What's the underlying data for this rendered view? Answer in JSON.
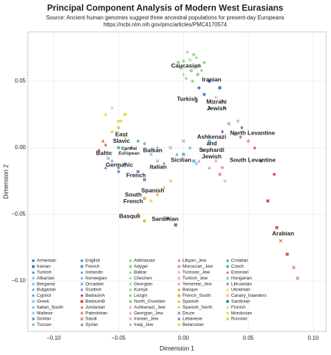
{
  "chart_data": {
    "type": "scatter",
    "title": "Principal Component Analysis of Modern West Eurasians",
    "subtitle": "Source: Ancient human genomes suggest three ancestral populations for present-day Europeans",
    "source_url": "https://ncbi.nlm.nih.gov/pmc/articles/PMC4170574",
    "xlabel": "Dimension 1",
    "ylabel": "Dimension 2",
    "xlim": [
      -0.12,
      0.11
    ],
    "ylim": [
      -0.138,
      0.087
    ],
    "xticks": [
      {
        "value": -0.1,
        "label": "−0.10"
      },
      {
        "value": -0.05,
        "label": "−0.05"
      },
      {
        "value": 0,
        "label": "0.00"
      },
      {
        "value": 0.05,
        "label": "0.05"
      },
      {
        "value": 0.1,
        "label": "0.10"
      }
    ],
    "yticks": [
      {
        "value": -0.1,
        "label": "−0.10"
      },
      {
        "value": -0.05,
        "label": "−0.05"
      },
      {
        "value": 0,
        "label": "0.00"
      },
      {
        "value": 0.05,
        "label": "0.05"
      }
    ],
    "grid": true,
    "annotations": [
      [
        "Caucasian"
      ],
      [
        "Iranian"
      ],
      [
        "Turkish"
      ],
      [
        "Mizrahi",
        "Jewish"
      ],
      [
        "North Levantine"
      ],
      [
        "East",
        "Slavic"
      ],
      [
        "Baltic"
      ],
      [
        "Central",
        "European"
      ],
      [
        "Balkan"
      ],
      [
        "Germanic"
      ],
      [
        "Italian"
      ],
      [
        "French"
      ],
      [
        "Sicilian"
      ],
      [
        "Ashkenazi",
        "and",
        "Sephardi",
        "Jewish"
      ],
      [
        "South Levantine"
      ],
      [
        "Spanish"
      ],
      [
        "South",
        "French"
      ],
      [
        "Basque"
      ],
      [
        "Sardinian"
      ],
      [
        "Arabian"
      ]
    ],
    "series": [
      {
        "name": "Armenian",
        "color": "#3f6ec4",
        "marker": "circle",
        "x": [
          0.012,
          0.016
        ],
        "y": [
          0.045,
          0.04
        ]
      },
      {
        "name": "Iranian",
        "color": "#3f6ec4",
        "marker": "square",
        "x": [
          0.02,
          0.028
        ],
        "y": [
          0.05,
          0.045
        ]
      },
      {
        "name": "Turkish",
        "color": "#3f6ec4",
        "marker": "triangle",
        "x": [
          0.01,
          0.02
        ],
        "y": [
          0.035,
          0.03
        ]
      },
      {
        "name": "Albanian",
        "color": "#5aaecf",
        "marker": "plus",
        "x": [
          -0.02
        ],
        "y": [
          0.0
        ]
      },
      {
        "name": "Bergamo",
        "color": "#5aaecf",
        "marker": "cross",
        "x": [
          -0.025,
          -0.02
        ],
        "y": [
          -0.005,
          -0.01
        ]
      },
      {
        "name": "Bulgarian",
        "color": "#5aaecf",
        "marker": "diamond",
        "x": [
          -0.03
        ],
        "y": [
          0.003
        ]
      },
      {
        "name": "Cypriot",
        "color": "#5aaecf",
        "marker": "circle",
        "x": [
          0.02,
          0.015
        ],
        "y": [
          0.005,
          -0.002
        ]
      },
      {
        "name": "Greek",
        "color": "#5aaecf",
        "marker": "cross",
        "x": [
          -0.01,
          0.0
        ],
        "y": [
          0.0,
          0.005
        ]
      },
      {
        "name": "Italian_South",
        "color": "#5aaecf",
        "marker": "triangle",
        "x": [
          -0.005,
          0.005
        ],
        "y": [
          -0.005,
          0.0
        ]
      },
      {
        "name": "Maltese",
        "color": "#5aaecf",
        "marker": "plus",
        "x": [
          0.01
        ],
        "y": [
          -0.012
        ]
      },
      {
        "name": "Sicilian",
        "color": "#5aaecf",
        "marker": "square",
        "x": [
          0.0,
          0.008
        ],
        "y": [
          -0.005,
          -0.01
        ]
      },
      {
        "name": "Tuscan",
        "color": "#5aaecf",
        "marker": "diamond",
        "x": [
          -0.015
        ],
        "y": [
          -0.012
        ]
      },
      {
        "name": "English",
        "color": "#5b8fd6",
        "marker": "circle",
        "x": [
          -0.045,
          -0.05
        ],
        "y": [
          -0.012,
          -0.018
        ]
      },
      {
        "name": "French",
        "color": "#5b8fd6",
        "marker": "square",
        "x": [
          -0.035,
          -0.03
        ],
        "y": [
          -0.018,
          -0.024
        ]
      },
      {
        "name": "Icelandic",
        "color": "#5b8fd6",
        "marker": "triangle",
        "x": [
          -0.06
        ],
        "y": [
          -0.015
        ]
      },
      {
        "name": "Norwegian",
        "color": "#5b8fd6",
        "marker": "plus",
        "x": [
          -0.055
        ],
        "y": [
          -0.01
        ]
      },
      {
        "name": "Orcadian",
        "color": "#5b8fd6",
        "marker": "cross",
        "x": [
          -0.058
        ],
        "y": [
          -0.008
        ]
      },
      {
        "name": "Scottish",
        "color": "#5b8fd6",
        "marker": "diamond",
        "x": [
          -0.05
        ],
        "y": [
          -0.015
        ]
      },
      {
        "name": "BedouinA",
        "color": "#d64a3b",
        "marker": "circle",
        "x": [
          0.06,
          0.07
        ],
        "y": [
          -0.01,
          -0.02
        ]
      },
      {
        "name": "BedouinB",
        "color": "#d64a3b",
        "marker": "square",
        "x": [
          0.065,
          0.072,
          0.08
        ],
        "y": [
          -0.04,
          -0.06,
          -0.08
        ]
      },
      {
        "name": "Jordanian",
        "color": "#d64a3b",
        "marker": "triangle",
        "x": [
          0.055
        ],
        "y": [
          0.0
        ]
      },
      {
        "name": "Palestinian",
        "color": "#d64a3b",
        "marker": "plus",
        "x": [
          0.05
        ],
        "y": [
          0.005
        ]
      },
      {
        "name": "Saudi",
        "color": "#d64a3b",
        "marker": "cross",
        "x": [
          0.075,
          0.085,
          0.088
        ],
        "y": [
          -0.07,
          -0.09,
          -0.098
        ]
      },
      {
        "name": "Syrian",
        "color": "#9a6ab8",
        "marker": "diamond",
        "x": [
          0.044
        ],
        "y": [
          0.008
        ]
      },
      {
        "name": "Abkhasian",
        "color": "#8fd18a",
        "marker": "circle",
        "x": [
          0.0,
          0.008
        ],
        "y": [
          0.065,
          0.07
        ]
      },
      {
        "name": "Adygei",
        "color": "#8fd18a",
        "marker": "square",
        "x": [
          -0.002,
          0.006
        ],
        "y": [
          0.06,
          0.058
        ]
      },
      {
        "name": "Balkar",
        "color": "#8fd18a",
        "marker": "triangle",
        "x": [
          0.01,
          0.003
        ],
        "y": [
          0.068,
          0.072
        ]
      },
      {
        "name": "Chechen",
        "color": "#8fd18a",
        "marker": "plus",
        "x": [
          0.012,
          0.0
        ],
        "y": [
          0.062,
          0.055
        ]
      },
      {
        "name": "Georgian",
        "color": "#8fd18a",
        "marker": "cross",
        "x": [
          0.005,
          0.009
        ],
        "y": [
          0.066,
          0.06
        ]
      },
      {
        "name": "Kumyk",
        "color": "#8fd18a",
        "marker": "diamond",
        "x": [
          0.014,
          0.002
        ],
        "y": [
          0.058,
          0.052
        ]
      },
      {
        "name": "Lezgin",
        "color": "#8fd18a",
        "marker": "circle",
        "x": [
          0.016,
          0.007
        ],
        "y": [
          0.064,
          0.05
        ]
      },
      {
        "name": "North_Ossetian",
        "color": "#8fd18a",
        "marker": "square",
        "x": [
          -0.004,
          0.011
        ],
        "y": [
          0.064,
          0.055
        ]
      },
      {
        "name": "Ashkenazi_Jew",
        "color": "#e58fa0",
        "marker": "triangle",
        "x": [
          0.012,
          0.02
        ],
        "y": [
          -0.01,
          -0.015
        ]
      },
      {
        "name": "Georgian_Jew",
        "color": "#e58fa0",
        "marker": "plus",
        "x": [
          0.025
        ],
        "y": [
          0.038
        ]
      },
      {
        "name": "Iranian_Jew",
        "color": "#e58fa0",
        "marker": "cross",
        "x": [
          0.03
        ],
        "y": [
          0.035
        ]
      },
      {
        "name": "Iraqi_Jew",
        "color": "#e58fa0",
        "marker": "diamond",
        "x": [
          0.032
        ],
        "y": [
          0.03
        ]
      },
      {
        "name": "Libyan_Jew",
        "color": "#e58fa0",
        "marker": "circle",
        "x": [
          0.03
        ],
        "y": [
          -0.015
        ]
      },
      {
        "name": "Moroccan_Jew",
        "color": "#e58fa0",
        "marker": "square",
        "x": [
          0.028
        ],
        "y": [
          -0.02
        ]
      },
      {
        "name": "Tunisian_Jew",
        "color": "#e58fa0",
        "marker": "plus",
        "x": [
          0.032
        ],
        "y": [
          -0.025
        ]
      },
      {
        "name": "Turkish_Jew",
        "color": "#e58fa0",
        "marker": "cross",
        "x": [
          0.025
        ],
        "y": [
          -0.01
        ]
      },
      {
        "name": "Yemenite_Jew",
        "color": "#e58fa0",
        "marker": "diamond",
        "x": [
          0.042
        ],
        "y": [
          0.02
        ]
      },
      {
        "name": "Basque",
        "color": "#f0a13a",
        "marker": "circle",
        "x": [
          -0.035,
          -0.03
        ],
        "y": [
          -0.05,
          -0.055
        ]
      },
      {
        "name": "French_South",
        "color": "#f0a13a",
        "marker": "square",
        "x": [
          -0.03
        ],
        "y": [
          -0.038
        ]
      },
      {
        "name": "Spanish",
        "color": "#f0a13a",
        "marker": "triangle",
        "x": [
          -0.02,
          -0.015
        ],
        "y": [
          -0.035,
          -0.03
        ]
      },
      {
        "name": "Spanish_North",
        "color": "#f0a13a",
        "marker": "plus",
        "x": [
          -0.025
        ],
        "y": [
          -0.04
        ]
      },
      {
        "name": "Druze",
        "color": "#7b68b5",
        "marker": "cross",
        "x": [
          0.035,
          0.04
        ],
        "y": [
          0.018,
          0.01
        ]
      },
      {
        "name": "Lebanese",
        "color": "#7b68b5",
        "marker": "diamond",
        "x": [
          0.03,
          0.045
        ],
        "y": [
          0.012,
          0.015
        ]
      },
      {
        "name": "Belarusian",
        "color": "#e0d43a",
        "marker": "circle",
        "x": [
          -0.055,
          -0.05
        ],
        "y": [
          0.012,
          0.02
        ]
      },
      {
        "name": "Croatian",
        "color": "#4fb6c0",
        "marker": "circle",
        "x": [
          -0.04,
          -0.035
        ],
        "y": [
          0.0,
          0.005
        ]
      },
      {
        "name": "Czech",
        "color": "#4fb6c0",
        "marker": "square",
        "x": [
          -0.05
        ],
        "y": [
          0.0
        ]
      },
      {
        "name": "Estonian",
        "color": "#e0614f",
        "marker": "triangle",
        "x": [
          -0.062
        ],
        "y": [
          0.005
        ]
      },
      {
        "name": "Hungarian",
        "color": "#4fb6c0",
        "marker": "cross",
        "x": [
          -0.045
        ],
        "y": [
          -0.002
        ]
      },
      {
        "name": "Lithuanian",
        "color": "#e0614f",
        "marker": "diamond",
        "x": [
          -0.065,
          -0.06
        ],
        "y": [
          -0.002,
          0.002
        ]
      },
      {
        "name": "Ukrainian",
        "color": "#e0d43a",
        "marker": "plus",
        "x": [
          -0.045
        ],
        "y": [
          0.008
        ]
      },
      {
        "name": "Canary_Islanders",
        "color": "#f0a13a",
        "marker": "cross",
        "x": [
          -0.01
        ],
        "y": [
          -0.025
        ]
      },
      {
        "name": "Sardinian",
        "color": "#2e8b57",
        "marker": "square",
        "x": [
          -0.012,
          -0.006
        ],
        "y": [
          -0.053,
          -0.058
        ]
      },
      {
        "name": "Finnish",
        "color": "#e0d43a",
        "marker": "triangle",
        "x": [
          -0.06,
          -0.055
        ],
        "y": [
          0.025,
          0.03
        ]
      },
      {
        "name": "Mordovian",
        "color": "#e0d43a",
        "marker": "diamond",
        "x": [
          -0.048
        ],
        "y": [
          0.02
        ]
      },
      {
        "name": "Russian",
        "color": "#e0d43a",
        "marker": "square",
        "x": [
          -0.05,
          -0.045
        ],
        "y": [
          0.015,
          0.025
        ]
      }
    ]
  }
}
